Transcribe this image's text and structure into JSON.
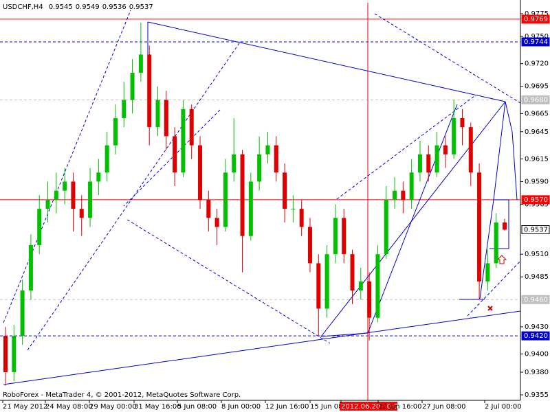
{
  "chart_data": {
    "type": "candlestick",
    "title": "USDCHF,H4",
    "header_prices": [
      "0.9545",
      "0.9549",
      "0.9536",
      "0.9537"
    ],
    "footer": "RoboForex - MetaTrader 4, © 2001-2012, MetaQuotes Software Corp.",
    "x_labels": [
      "21 May 2012",
      "24 May 08:00",
      "29 May 00:00",
      "31 May 16:00",
      "5 Jun 08:00",
      "8 Jun 00:00",
      "12 Jun 16:00",
      "15 Jun 08:00",
      "2012.06.20 20:00",
      "22 Jun 16:00",
      "27 Jun 08:00",
      "2 Jul 00:00"
    ],
    "highlighted_x_label": 8,
    "up_color": "#00c000",
    "down_color": "#e00000",
    "ylim": [
      0.9355,
      0.9775
    ],
    "yticks": [
      {
        "value": 0.9775,
        "label": "0.9775"
      },
      {
        "value": 0.975,
        "label": "0.9750"
      },
      {
        "value": 0.972,
        "label": "0.9720"
      },
      {
        "value": 0.9695,
        "label": "0.9695"
      },
      {
        "value": 0.9665,
        "label": "0.9665"
      },
      {
        "value": 0.9645,
        "label": "0.9645"
      },
      {
        "value": 0.9615,
        "label": "0.9615"
      },
      {
        "value": 0.959,
        "label": "0.9590"
      },
      {
        "value": 0.9565,
        "label": "0.9565"
      },
      {
        "value": 0.951,
        "label": "0.9510"
      },
      {
        "value": 0.9485,
        "label": "0.9485"
      },
      {
        "value": 0.943,
        "label": "0.9430"
      },
      {
        "value": 0.94,
        "label": "0.9400"
      },
      {
        "value": 0.938,
        "label": "0.9380"
      },
      {
        "value": 0.9355,
        "label": "0.9355"
      }
    ],
    "levels": [
      {
        "value": 0.9769,
        "label": "0.9769",
        "color": "#ff0000",
        "dashed": false,
        "line": true
      },
      {
        "value": 0.9744,
        "label": "0.9744",
        "color": "#0000cc",
        "dashed": true,
        "line": true
      },
      {
        "value": 0.968,
        "label": "0.9680",
        "color": "#c0c0c0",
        "dashed": true,
        "line": true
      },
      {
        "value": 0.957,
        "label": "0.9570",
        "color": "#ff0000",
        "dashed": false,
        "line": true
      },
      {
        "value": 0.9537,
        "label": "0.9537",
        "color": "#ffffff",
        "dashed": false,
        "line": false
      },
      {
        "value": 0.946,
        "label": "0.9460",
        "color": "#c0c0c0",
        "dashed": true,
        "line": true
      },
      {
        "value": 0.942,
        "label": "0.9420",
        "color": "#0000cc",
        "dashed": true,
        "line": true
      }
    ],
    "open": [
      0.942,
      0.938,
      0.942,
      0.947,
      0.952,
      0.956,
      0.957,
      0.958,
      0.959,
      0.956,
      0.955,
      0.959,
      0.96,
      0.963,
      0.966,
      0.968,
      0.971,
      0.973,
      0.965,
      0.968,
      0.964,
      0.96,
      0.967,
      0.963,
      0.957,
      0.955,
      0.954,
      0.96,
      0.962,
      0.953,
      0.959,
      0.962,
      0.963,
      0.96,
      0.956,
      0.956,
      0.954,
      0.95,
      0.945,
      0.951,
      0.955,
      0.951,
      0.947,
      0.948,
      0.944,
      0.951,
      0.957,
      0.958,
      0.957,
      0.96,
      0.962,
      0.96,
      0.963,
      0.962,
      0.966,
      0.965,
      0.96,
      0.948,
      0.95,
      0.9545
    ],
    "high": [
      0.943,
      0.9432,
      0.9482,
      0.9532,
      0.9575,
      0.959,
      0.96,
      0.9605,
      0.96,
      0.9575,
      0.9605,
      0.9615,
      0.9645,
      0.9675,
      0.97,
      0.9725,
      0.9765,
      0.974,
      0.9695,
      0.969,
      0.965,
      0.968,
      0.9675,
      0.964,
      0.958,
      0.956,
      0.9615,
      0.966,
      0.9625,
      0.96,
      0.964,
      0.9645,
      0.964,
      0.961,
      0.9575,
      0.957,
      0.955,
      0.951,
      0.952,
      0.9565,
      0.956,
      0.9515,
      0.9495,
      0.949,
      0.952,
      0.9585,
      0.9595,
      0.959,
      0.9615,
      0.9635,
      0.963,
      0.9645,
      0.964,
      0.968,
      0.967,
      0.9655,
      0.961,
      0.9515,
      0.9555,
      0.9549
    ],
    "low": [
      0.9365,
      0.937,
      0.941,
      0.946,
      0.951,
      0.9545,
      0.9555,
      0.9565,
      0.9535,
      0.953,
      0.954,
      0.9575,
      0.959,
      0.962,
      0.965,
      0.9665,
      0.97,
      0.963,
      0.964,
      0.9625,
      0.9585,
      0.9595,
      0.9615,
      0.956,
      0.9535,
      0.952,
      0.9535,
      0.959,
      0.949,
      0.9525,
      0.958,
      0.961,
      0.959,
      0.9545,
      0.9545,
      0.953,
      0.949,
      0.942,
      0.944,
      0.95,
      0.95,
      0.9455,
      0.946,
      0.9415,
      0.9435,
      0.9505,
      0.956,
      0.9555,
      0.956,
      0.959,
      0.959,
      0.9595,
      0.9605,
      0.9615,
      0.963,
      0.9585,
      0.946,
      0.947,
      0.9495,
      0.9536
    ],
    "close": [
      0.938,
      0.942,
      0.947,
      0.952,
      0.956,
      0.957,
      0.958,
      0.959,
      0.956,
      0.955,
      0.959,
      0.96,
      0.963,
      0.966,
      0.968,
      0.971,
      0.973,
      0.965,
      0.968,
      0.964,
      0.96,
      0.967,
      0.963,
      0.957,
      0.955,
      0.954,
      0.96,
      0.962,
      0.953,
      0.959,
      0.962,
      0.963,
      0.96,
      0.956,
      0.956,
      0.954,
      0.95,
      0.945,
      0.951,
      0.955,
      0.951,
      0.947,
      0.948,
      0.944,
      0.951,
      0.957,
      0.958,
      0.957,
      0.96,
      0.962,
      0.96,
      0.963,
      0.962,
      0.966,
      0.965,
      0.96,
      0.948,
      0.95,
      0.9545,
      0.9537
    ]
  }
}
